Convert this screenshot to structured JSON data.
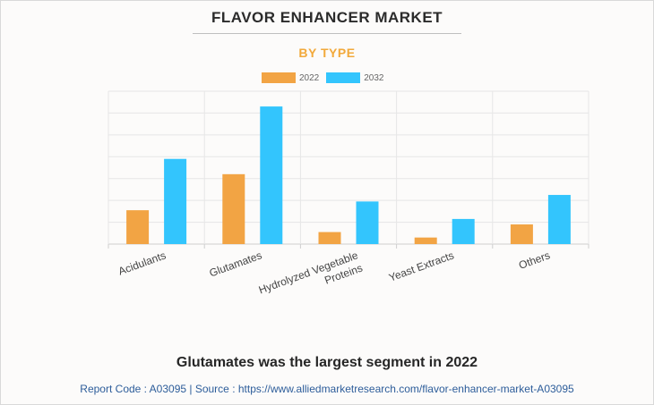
{
  "header": {
    "title": "FLAVOR ENHANCER MARKET",
    "subtitle": "BY TYPE"
  },
  "chart_data": {
    "type": "bar",
    "categories": [
      [
        "Acidulants"
      ],
      [
        "Glutamates"
      ],
      [
        "Hydrolyzed Vegetable",
        "Proteins"
      ],
      [
        "Yeast Extracts"
      ],
      [
        "Others"
      ]
    ],
    "series": [
      {
        "name": "2022",
        "color": "#f2a444",
        "values": [
          15.5,
          32,
          5.5,
          3,
          9
        ]
      },
      {
        "name": "2032",
        "color": "#33c5fd",
        "values": [
          39,
          63,
          19.5,
          11.5,
          22.5
        ]
      }
    ],
    "ylim": [
      0,
      70
    ],
    "grid": true,
    "legend_position": "top"
  },
  "headline": "Glutamates was the largest segment in 2022",
  "footer": "Report Code : A03095  |  Source : https://www.alliedmarketresearch.com/flavor-enhancer-market-A03095"
}
